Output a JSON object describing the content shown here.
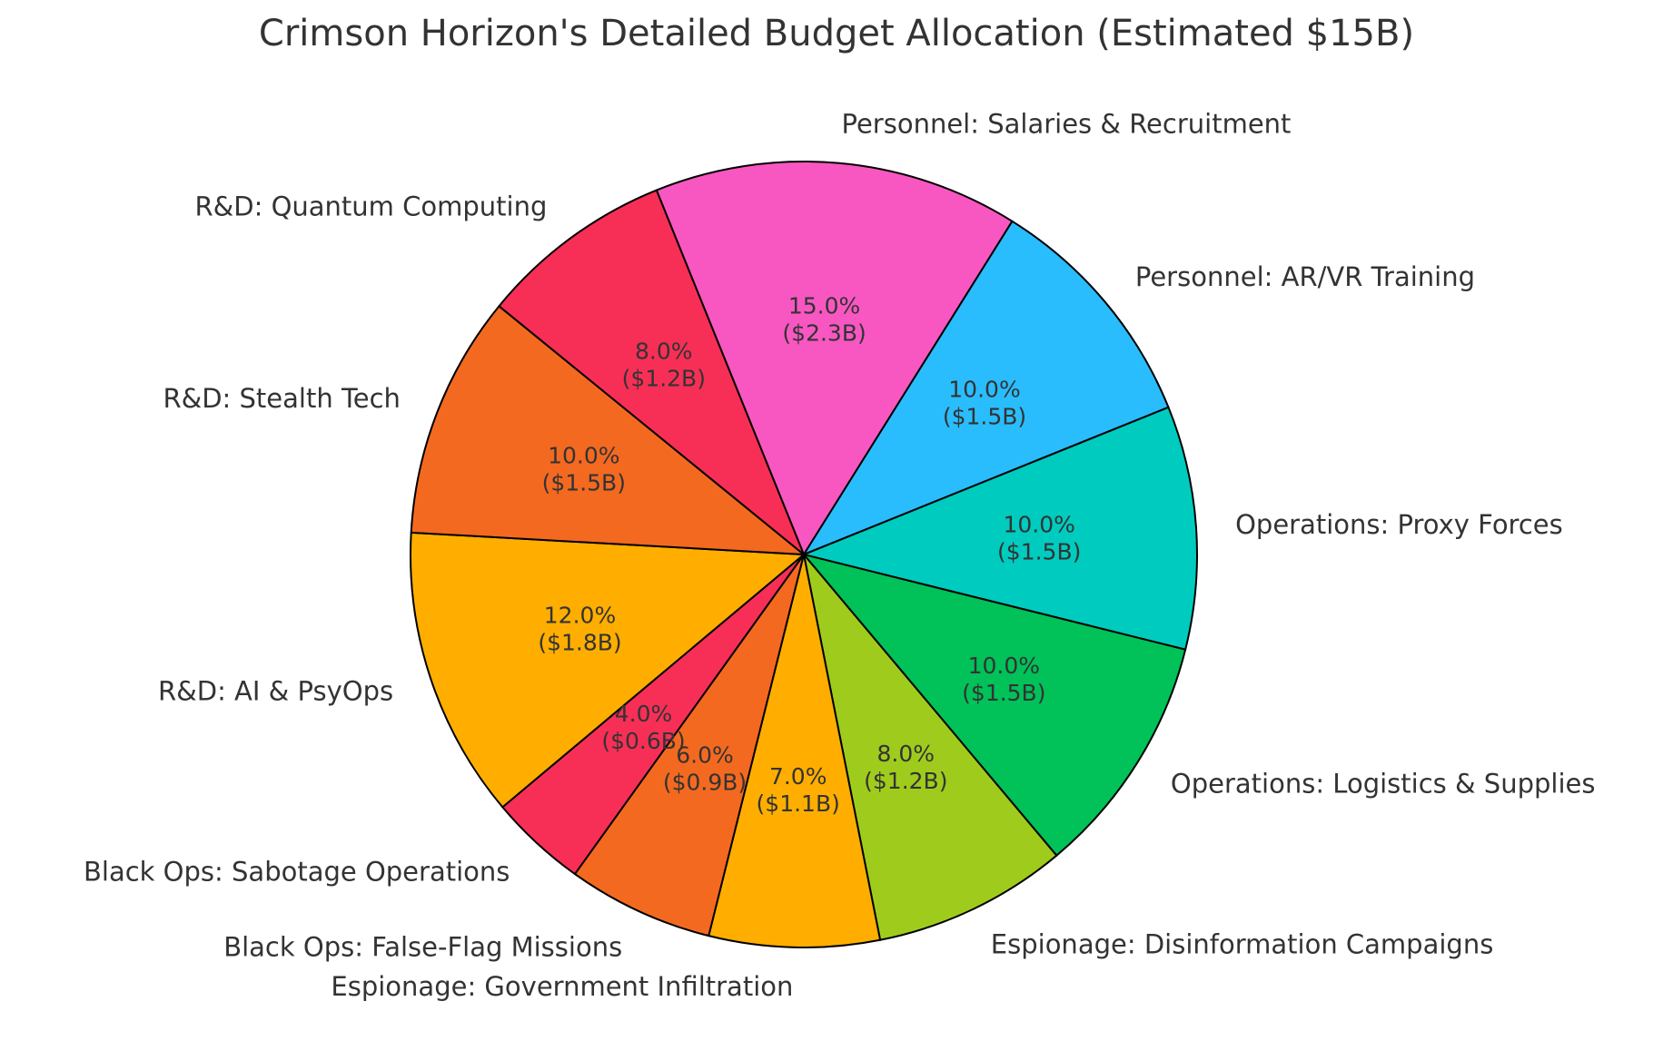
{
  "chart_data": {
    "type": "pie",
    "title": "Crimson Horizon's Detailed Budget Allocation (Estimated $15B)",
    "slices": [
      {
        "label": "Personnel: Salaries & Recruitment",
        "value": 15.0,
        "amount": "$2.3B",
        "pct_label": "15.0%",
        "amount_label": "($2.3B)",
        "color": "#f857c1"
      },
      {
        "label": "Personnel: AR/VR Training",
        "value": 10.0,
        "amount": "$1.5B",
        "pct_label": "10.0%",
        "amount_label": "($1.5B)",
        "color": "#29bdfd"
      },
      {
        "label": "Operations: Proxy Forces",
        "value": 10.0,
        "amount": "$1.5B",
        "pct_label": "10.0%",
        "amount_label": "($1.5B)",
        "color": "#00cbbf"
      },
      {
        "label": "Operations: Logistics & Supplies",
        "value": 10.0,
        "amount": "$1.5B",
        "pct_label": "10.0%",
        "amount_label": "($1.5B)",
        "color": "#01c159"
      },
      {
        "label": "Espionage: Disinformation Campaigns",
        "value": 8.0,
        "amount": "$1.2B",
        "pct_label": "8.0%",
        "amount_label": "($1.2B)",
        "color": "#9fcc1c"
      },
      {
        "label": "Espionage: Government Infiltration",
        "value": 7.0,
        "amount": "$1.1B",
        "pct_label": "7.0%",
        "amount_label": "($1.1B)",
        "color": "#ffae00"
      },
      {
        "label": "Black Ops: False-Flag Missions",
        "value": 6.0,
        "amount": "$0.9B",
        "pct_label": "6.0%",
        "amount_label": "($0.9B)",
        "color": "#f46920"
      },
      {
        "label": "Black Ops: Sabotage Operations",
        "value": 4.0,
        "amount": "$0.6B",
        "pct_label": "4.0%",
        "amount_label": "($0.6B)",
        "color": "#f72f56"
      },
      {
        "label": "R&D: AI & PsyOps",
        "value": 12.0,
        "amount": "$1.8B",
        "pct_label": "12.0%",
        "amount_label": "($1.8B)",
        "color": "#ffae00"
      },
      {
        "label": "R&D: Stealth Tech",
        "value": 10.0,
        "amount": "$1.5B",
        "pct_label": "10.0%",
        "amount_label": "($1.5B)",
        "color": "#f46920"
      },
      {
        "label": "R&D: Quantum Computing",
        "value": 8.0,
        "amount": "$1.2B",
        "pct_label": "8.0%",
        "amount_label": "($1.2B)",
        "color": "#f72f56"
      }
    ]
  }
}
